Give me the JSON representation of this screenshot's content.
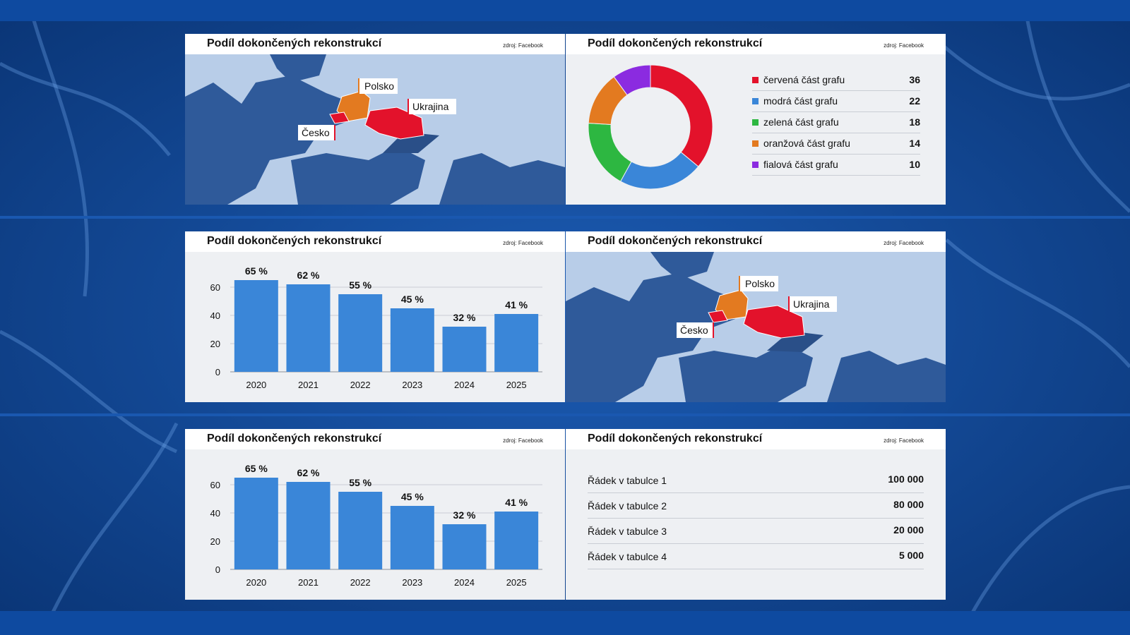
{
  "colors": {
    "bar": "#3a86d8",
    "red": "#e3122b",
    "blue": "#3a86d8",
    "green": "#2db741",
    "orange": "#e37a20",
    "purple": "#8b2be0",
    "map_land": "#2f5a9a",
    "map_sea": "#b8cde8"
  },
  "panels": {
    "map_top": {
      "title": "Podíl dokončených rekonstrukcí",
      "source": "zdroj: Facebook",
      "labels": {
        "poland": "Polsko",
        "ukraine": "Ukrajina",
        "czech": "Česko"
      }
    },
    "donut": {
      "title": "Podíl dokončených rekonstrukcí",
      "source": "zdroj: Facebook"
    },
    "bar_top": {
      "title": "Podíl dokončených rekonstrukcí",
      "source": "zdroj: Facebook"
    },
    "map_mid": {
      "title": "Podíl dokončených rekonstrukcí",
      "source": "zdroj: Facebook",
      "labels": {
        "poland": "Polsko",
        "ukraine": "Ukrajina",
        "czech": "Česko"
      }
    },
    "bar_bottom": {
      "title": "Podíl dokončených rekonstrukcí",
      "source": "zdroj: Facebook"
    },
    "table": {
      "title": "Podíl dokončených rekonstrukcí",
      "source": "zdroj: Facebook",
      "rows": [
        {
          "label": "Řádek v tabulce 1",
          "value": "100 000"
        },
        {
          "label": "Řádek v tabulce 2",
          "value": "80 000"
        },
        {
          "label": "Řádek v tabulce 3",
          "value": "20 000"
        },
        {
          "label": "Řádek v tabulce 4",
          "value": "5 000"
        }
      ]
    }
  },
  "chart_data": [
    {
      "type": "pie",
      "title": "Podíl dokončených rekonstrukcí",
      "slices": [
        {
          "label": "červená část grafu",
          "value": 36,
          "color": "#e3122b"
        },
        {
          "label": "modrá část grafu",
          "value": 22,
          "color": "#3a86d8"
        },
        {
          "label": "zelená část grafu",
          "value": 18,
          "color": "#2db741"
        },
        {
          "label": "oranžová část grafu",
          "value": 14,
          "color": "#e37a20"
        },
        {
          "label": "fialová část grafu",
          "value": 10,
          "color": "#8b2be0"
        }
      ]
    },
    {
      "type": "bar",
      "title": "Podíl dokončených rekonstrukcí",
      "categories": [
        "2020",
        "2021",
        "2022",
        "2023",
        "2024",
        "2025"
      ],
      "values": [
        65,
        62,
        55,
        45,
        32,
        41
      ],
      "value_labels": [
        "65 %",
        "62 %",
        "55 %",
        "45 %",
        "32 %",
        "41 %"
      ],
      "yticks": [
        0,
        20,
        40,
        60
      ],
      "ylim": [
        0,
        70
      ],
      "grid": true
    },
    {
      "type": "bar",
      "title": "Podíl dokončených rekonstrukcí",
      "categories": [
        "2020",
        "2021",
        "2022",
        "2023",
        "2024",
        "2025"
      ],
      "values": [
        65,
        62,
        55,
        45,
        32,
        41
      ],
      "value_labels": [
        "65 %",
        "62 %",
        "55 %",
        "45 %",
        "32 %",
        "41 %"
      ],
      "yticks": [
        0,
        20,
        40,
        60
      ],
      "ylim": [
        0,
        70
      ],
      "grid": true
    }
  ]
}
